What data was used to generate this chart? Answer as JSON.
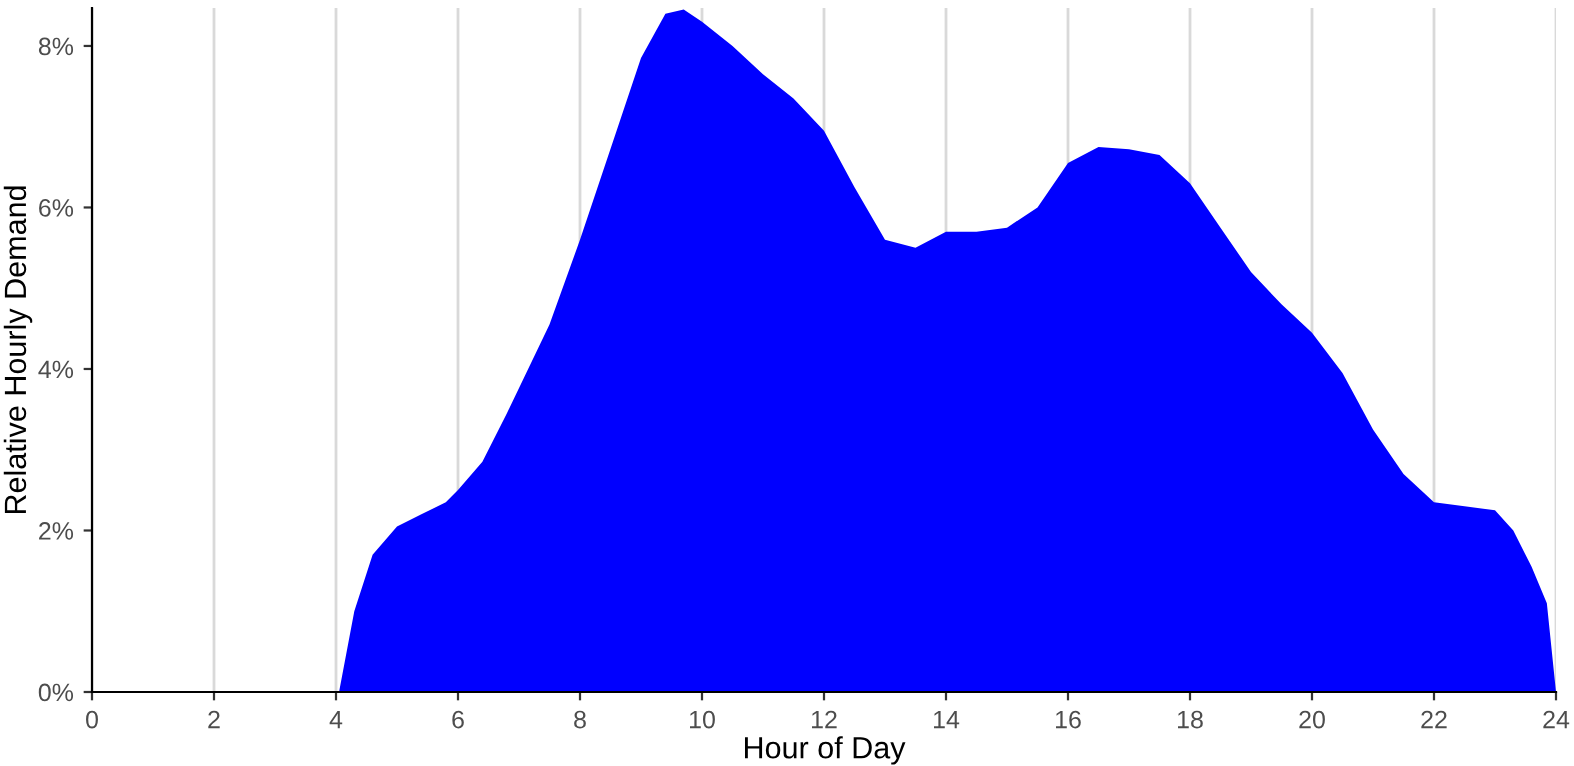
{
  "chart_data": {
    "type": "area",
    "xlabel": "Hour of Day",
    "ylabel": "Relative Hourly Demand",
    "series": [
      {
        "color": "#0000ff",
        "x": [
          0,
          4,
          4.05,
          4.3,
          4.6,
          5.0,
          5.4,
          5.8,
          6.0,
          6.4,
          6.8,
          7.5,
          8.0,
          8.6,
          9.0,
          9.4,
          9.7,
          10.0,
          10.5,
          11.0,
          11.5,
          12.0,
          12.5,
          13.0,
          13.5,
          14.0,
          14.5,
          15.0,
          15.5,
          16.0,
          16.5,
          17.0,
          17.5,
          18.0,
          18.5,
          19.0,
          19.5,
          20.0,
          20.5,
          21.0,
          21.5,
          22.0,
          22.5,
          23.0,
          23.3,
          23.6,
          23.85,
          24
        ],
        "values": [
          0,
          0,
          0,
          1.0,
          1.7,
          2.05,
          2.2,
          2.35,
          2.5,
          2.85,
          3.45,
          4.55,
          5.6,
          6.95,
          7.85,
          8.4,
          8.45,
          8.3,
          8.0,
          7.65,
          7.35,
          6.95,
          6.25,
          5.6,
          5.5,
          5.7,
          5.7,
          5.75,
          6.0,
          6.55,
          6.75,
          6.72,
          6.65,
          6.3,
          5.75,
          5.2,
          4.8,
          4.45,
          3.95,
          3.25,
          2.7,
          2.35,
          2.3,
          2.25,
          2.0,
          1.55,
          1.1,
          0
        ]
      }
    ],
    "xlim": [
      0,
      24
    ],
    "xticks": [
      0,
      2,
      4,
      6,
      8,
      10,
      12,
      14,
      16,
      18,
      20,
      22,
      24
    ],
    "ylim": [
      0,
      8.47
    ],
    "yticks": [
      {
        "value": 0,
        "label": "0%"
      },
      {
        "value": 2,
        "label": "2%"
      },
      {
        "value": 4,
        "label": "4%"
      },
      {
        "value": 6,
        "label": "6%"
      },
      {
        "value": 8,
        "label": "8%"
      }
    ],
    "grid": "x"
  }
}
